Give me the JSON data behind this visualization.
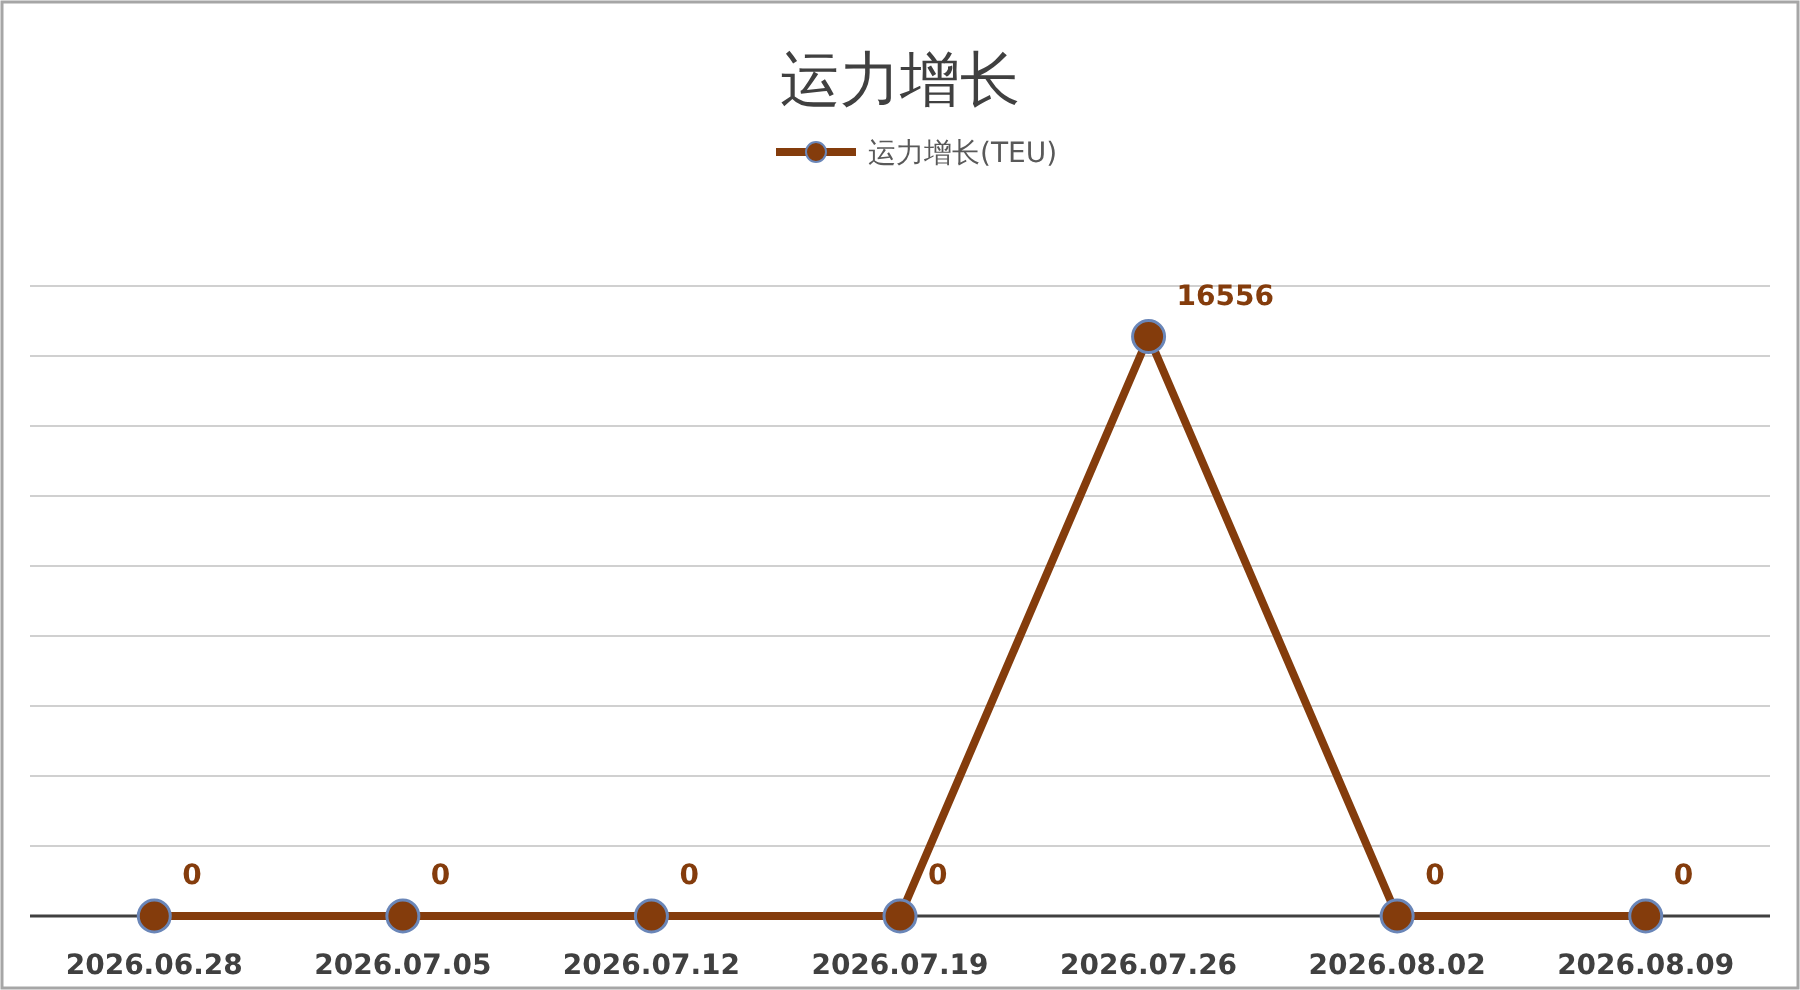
{
  "chart_data": {
    "type": "line",
    "title": "运力增长",
    "categories": [
      "2026.06.28",
      "2026.07.05",
      "2026.07.12",
      "2026.07.19",
      "2026.07.26",
      "2026.08.02",
      "2026.08.09"
    ],
    "series": [
      {
        "name": "运力增长(TEU)",
        "color": "#843c0c",
        "values": [
          0,
          0,
          0,
          0,
          16556,
          0,
          0
        ]
      }
    ],
    "ylim": [
      0,
      18000
    ],
    "yticks": [
      {
        "value": 0,
        "label": null
      },
      {
        "value": 2000,
        "label": null
      },
      {
        "value": 4000,
        "label": null
      },
      {
        "value": 6000,
        "label": null
      },
      {
        "value": 8000,
        "label": null
      },
      {
        "value": 10000,
        "label": null
      },
      {
        "value": 12000,
        "label": null
      },
      {
        "value": 14000,
        "label": null
      },
      {
        "value": 16000,
        "label": null
      },
      {
        "value": 18000,
        "label": null
      }
    ],
    "grid": "y",
    "legend": "top",
    "marker": "circle",
    "data_labels": true,
    "tick_labels": "x"
  }
}
